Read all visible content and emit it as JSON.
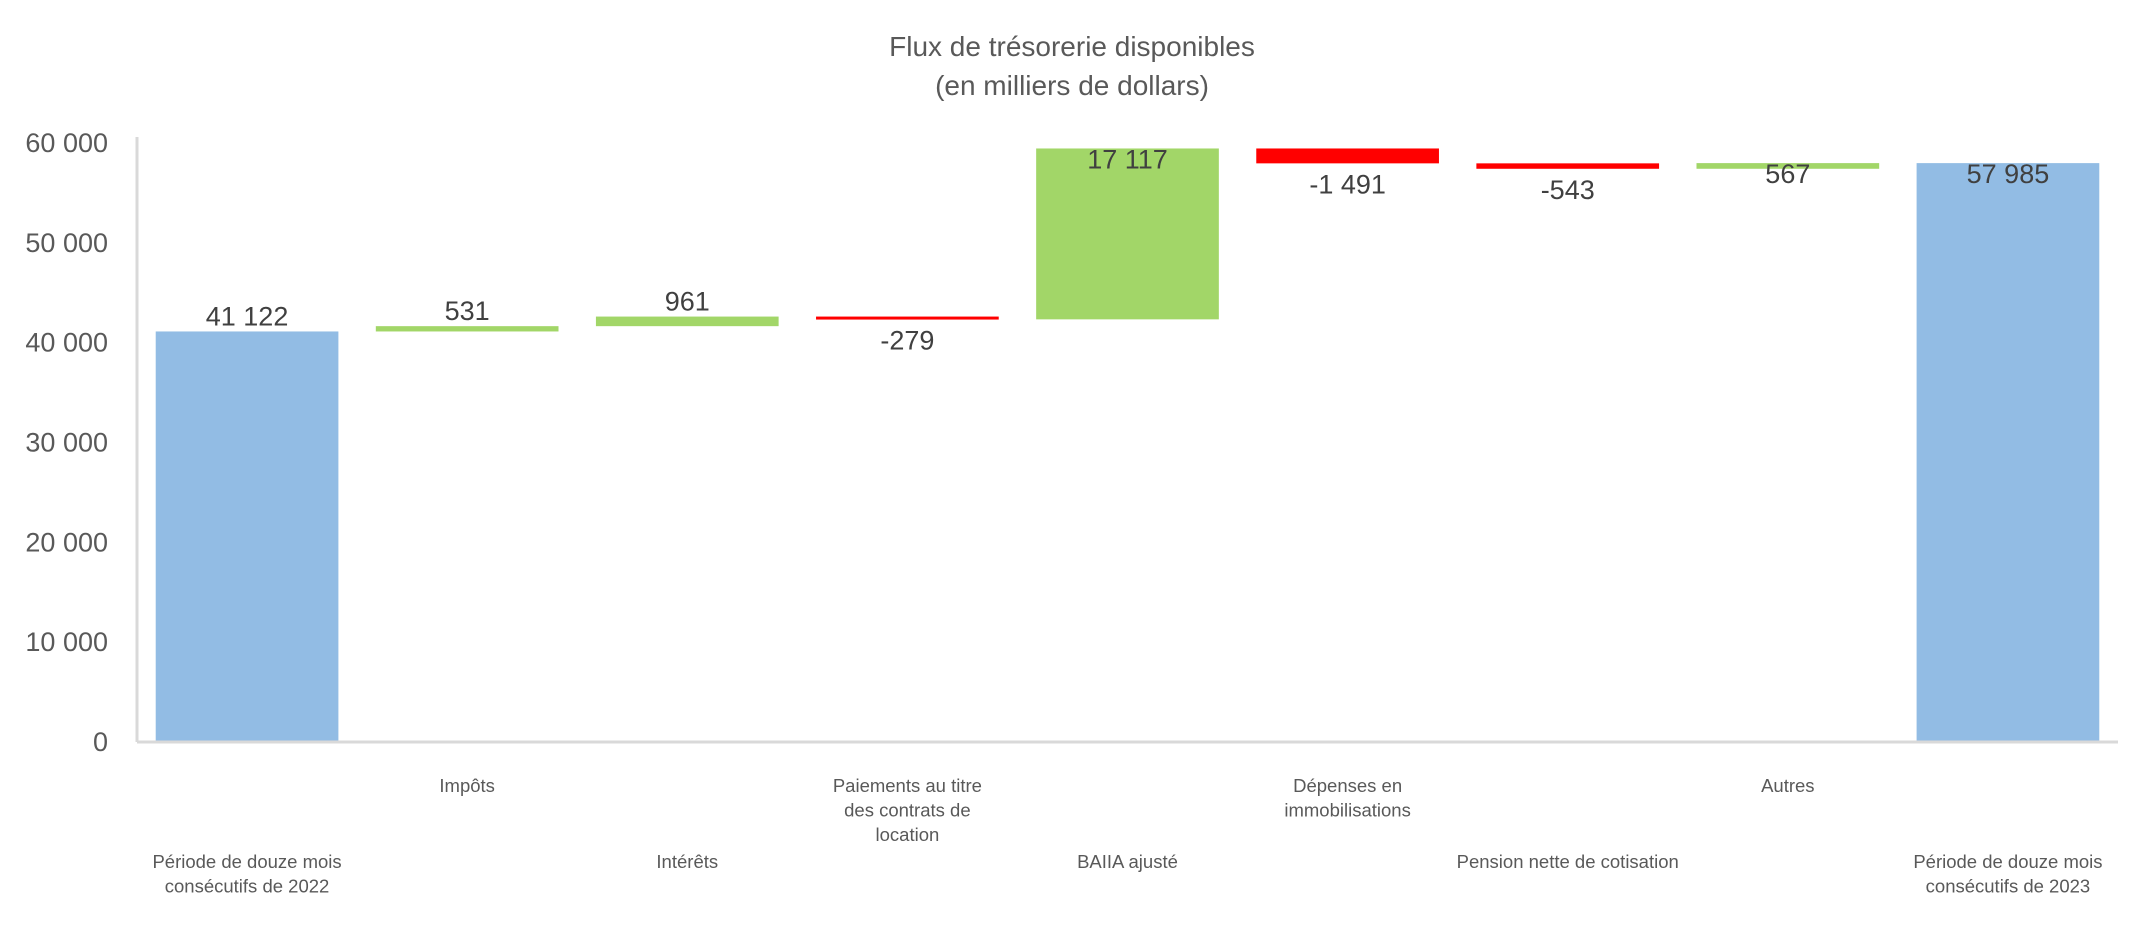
{
  "chart_data": {
    "type": "waterfall",
    "title": "Flux de trésorerie disponibles",
    "subtitle": "(en milliers de dollars)",
    "ylim": [
      0,
      60000
    ],
    "yticks": [
      "0",
      "10 000",
      "20 000",
      "30 000",
      "40 000",
      "50 000",
      "60 000"
    ],
    "ytick_values": [
      0,
      10000,
      20000,
      30000,
      40000,
      50000,
      60000
    ],
    "grid": false,
    "colors": {
      "total": "#92BCE4",
      "increase": "#A2D668",
      "decrease": "#FF0000",
      "axis": "#D9D9D9"
    },
    "categories": [
      {
        "label_lines": [
          "Période de douze mois",
          "consécutifs de 2022"
        ],
        "label_row": 2,
        "kind": "total",
        "value": 41122,
        "value_label": "41 122"
      },
      {
        "label_lines": [
          "Impôts"
        ],
        "label_row": 1,
        "kind": "increase",
        "value": 531,
        "value_label": "531"
      },
      {
        "label_lines": [
          "Intérêts"
        ],
        "label_row": 2,
        "kind": "increase",
        "value": 961,
        "value_label": "961"
      },
      {
        "label_lines": [
          "Paiements au titre",
          "des contrats de",
          "location"
        ],
        "label_row": 1,
        "kind": "decrease",
        "value": -279,
        "value_label": "-279"
      },
      {
        "label_lines": [
          "BAIIA ajusté"
        ],
        "label_row": 2,
        "kind": "increase",
        "value": 17117,
        "value_label": "17 117"
      },
      {
        "label_lines": [
          "Dépenses en",
          "immobilisations"
        ],
        "label_row": 1,
        "kind": "decrease",
        "value": -1491,
        "value_label": "-1 491"
      },
      {
        "label_lines": [
          "Pension nette de cotisation"
        ],
        "label_row": 2,
        "kind": "decrease",
        "value": -543,
        "value_label": "-543"
      },
      {
        "label_lines": [
          "Autres"
        ],
        "label_row": 1,
        "kind": "increase",
        "value": 567,
        "value_label": "567"
      },
      {
        "label_lines": [
          "Période de douze mois",
          "consécutifs de 2023"
        ],
        "label_row": 2,
        "kind": "total",
        "value": 57985,
        "value_label": "57 985"
      }
    ]
  }
}
